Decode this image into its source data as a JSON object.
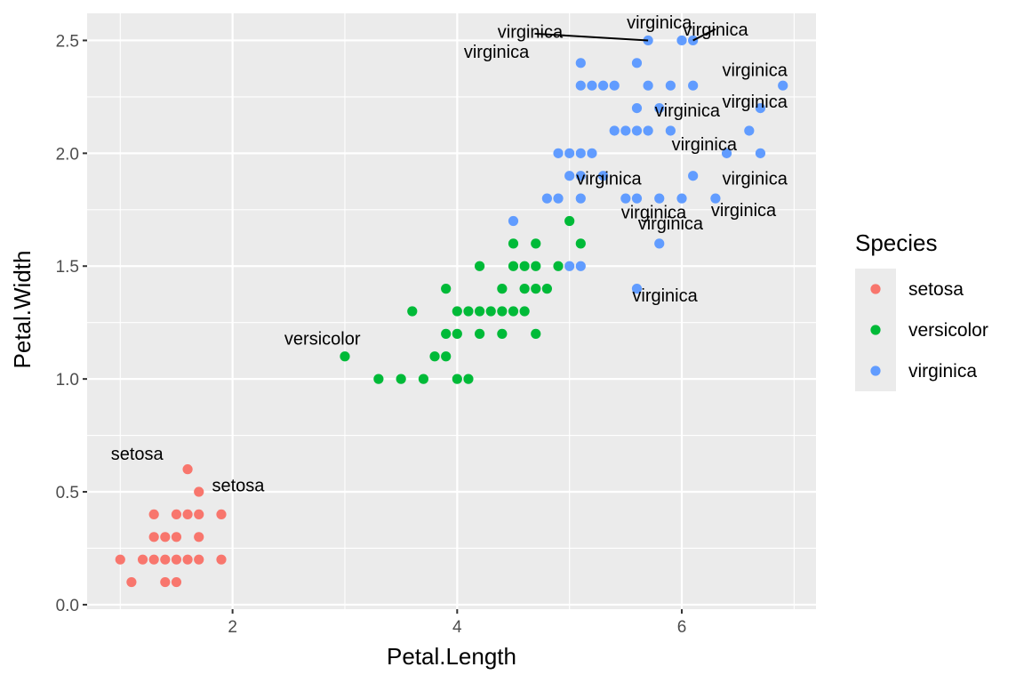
{
  "chart_data": {
    "type": "scatter",
    "xlabel": "Petal.Length",
    "ylabel": "Petal.Width",
    "xlim": [
      0.705,
      7.195
    ],
    "ylim": [
      -0.02,
      2.62
    ],
    "x_ticks": [
      2,
      4,
      6
    ],
    "x_tick_labels": [
      "2",
      "4",
      "6"
    ],
    "y_ticks": [
      0,
      0.5,
      1,
      1.5,
      2,
      2.5
    ],
    "y_tick_labels": [
      "0.0",
      "0.5",
      "1.0",
      "1.5",
      "2.0",
      "2.5"
    ],
    "grid": true,
    "legend": {
      "title": "Species",
      "placement": "right",
      "entries": [
        "setosa",
        "versicolor",
        "virginica"
      ]
    },
    "colors": {
      "setosa": "#f8766d",
      "versicolor": "#00ba38",
      "virginica": "#619cff"
    },
    "series": [
      {
        "name": "setosa",
        "points": [
          [
            1.0,
            0.2
          ],
          [
            1.1,
            0.1
          ],
          [
            1.2,
            0.2
          ],
          [
            1.3,
            0.2
          ],
          [
            1.3,
            0.3
          ],
          [
            1.3,
            0.4
          ],
          [
            1.4,
            0.1
          ],
          [
            1.4,
            0.2
          ],
          [
            1.4,
            0.3
          ],
          [
            1.5,
            0.1
          ],
          [
            1.5,
            0.2
          ],
          [
            1.5,
            0.3
          ],
          [
            1.5,
            0.4
          ],
          [
            1.6,
            0.2
          ],
          [
            1.6,
            0.4
          ],
          [
            1.6,
            0.6
          ],
          [
            1.7,
            0.2
          ],
          [
            1.7,
            0.3
          ],
          [
            1.7,
            0.4
          ],
          [
            1.7,
            0.5
          ],
          [
            1.9,
            0.2
          ],
          [
            1.9,
            0.4
          ]
        ]
      },
      {
        "name": "versicolor",
        "points": [
          [
            3.0,
            1.1
          ],
          [
            3.3,
            1.0
          ],
          [
            3.5,
            1.0
          ],
          [
            3.6,
            1.3
          ],
          [
            3.7,
            1.0
          ],
          [
            3.8,
            1.1
          ],
          [
            3.9,
            1.1
          ],
          [
            3.9,
            1.2
          ],
          [
            3.9,
            1.4
          ],
          [
            4.0,
            1.0
          ],
          [
            4.0,
            1.2
          ],
          [
            4.0,
            1.3
          ],
          [
            4.1,
            1.0
          ],
          [
            4.1,
            1.3
          ],
          [
            4.2,
            1.2
          ],
          [
            4.2,
            1.3
          ],
          [
            4.2,
            1.5
          ],
          [
            4.3,
            1.3
          ],
          [
            4.4,
            1.2
          ],
          [
            4.4,
            1.3
          ],
          [
            4.4,
            1.4
          ],
          [
            4.5,
            1.3
          ],
          [
            4.5,
            1.5
          ],
          [
            4.5,
            1.6
          ],
          [
            4.6,
            1.3
          ],
          [
            4.6,
            1.4
          ],
          [
            4.6,
            1.5
          ],
          [
            4.7,
            1.2
          ],
          [
            4.7,
            1.4
          ],
          [
            4.7,
            1.5
          ],
          [
            4.7,
            1.6
          ],
          [
            4.8,
            1.4
          ],
          [
            4.9,
            1.5
          ],
          [
            5.0,
            1.7
          ],
          [
            5.1,
            1.6
          ]
        ]
      },
      {
        "name": "virginica",
        "points": [
          [
            4.5,
            1.7
          ],
          [
            4.8,
            1.8
          ],
          [
            4.9,
            1.8
          ],
          [
            4.9,
            2.0
          ],
          [
            5.0,
            1.5
          ],
          [
            5.0,
            1.9
          ],
          [
            5.0,
            2.0
          ],
          [
            5.1,
            1.5
          ],
          [
            5.1,
            1.8
          ],
          [
            5.1,
            1.9
          ],
          [
            5.1,
            2.0
          ],
          [
            5.1,
            2.3
          ],
          [
            5.1,
            2.4
          ],
          [
            5.2,
            2.0
          ],
          [
            5.2,
            2.3
          ],
          [
            5.3,
            1.9
          ],
          [
            5.3,
            2.3
          ],
          [
            5.4,
            2.1
          ],
          [
            5.4,
            2.3
          ],
          [
            5.5,
            1.8
          ],
          [
            5.5,
            2.1
          ],
          [
            5.6,
            1.4
          ],
          [
            5.6,
            1.8
          ],
          [
            5.6,
            2.1
          ],
          [
            5.6,
            2.2
          ],
          [
            5.6,
            2.4
          ],
          [
            5.7,
            2.1
          ],
          [
            5.7,
            2.3
          ],
          [
            5.7,
            2.5
          ],
          [
            5.8,
            1.6
          ],
          [
            5.8,
            1.8
          ],
          [
            5.8,
            2.2
          ],
          [
            5.9,
            2.1
          ],
          [
            5.9,
            2.3
          ],
          [
            6.0,
            1.8
          ],
          [
            6.0,
            2.5
          ],
          [
            6.1,
            1.9
          ],
          [
            6.1,
            2.3
          ],
          [
            6.1,
            2.5
          ],
          [
            6.3,
            1.8
          ],
          [
            6.4,
            2.0
          ],
          [
            6.6,
            2.1
          ],
          [
            6.7,
            2.0
          ],
          [
            6.7,
            2.2
          ],
          [
            6.9,
            2.3
          ]
        ]
      }
    ],
    "annotations": [
      {
        "text": "setosa",
        "x": 1.15,
        "y": 0.67
      },
      {
        "text": "setosa",
        "x": 2.05,
        "y": 0.53
      },
      {
        "text": "versicolor",
        "x": 2.8,
        "y": 1.18
      },
      {
        "text": "virginica",
        "x": 5.85,
        "y": 1.37
      },
      {
        "text": "virginica",
        "x": 5.75,
        "y": 1.74
      },
      {
        "text": "virginica",
        "x": 5.35,
        "y": 1.89
      },
      {
        "text": "virginica",
        "x": 6.2,
        "y": 2.04
      },
      {
        "text": "virginica",
        "x": 6.65,
        "y": 2.23
      },
      {
        "text": "virginica",
        "x": 6.65,
        "y": 2.37
      },
      {
        "text": "virginica",
        "x": 5.8,
        "y": 2.58
      },
      {
        "text": "virginica",
        "x": 6.3,
        "y": 2.55
      },
      {
        "text": "virginica",
        "x": 4.65,
        "y": 2.54
      },
      {
        "text": "virginica",
        "x": 4.35,
        "y": 2.45
      },
      {
        "text": "virginica",
        "x": 6.65,
        "y": 1.89
      },
      {
        "text": "virginica",
        "x": 6.55,
        "y": 1.75
      },
      {
        "text": "virginica",
        "x": 6.05,
        "y": 2.19
      },
      {
        "text": "virginica",
        "x": 5.9,
        "y": 1.69
      }
    ]
  }
}
